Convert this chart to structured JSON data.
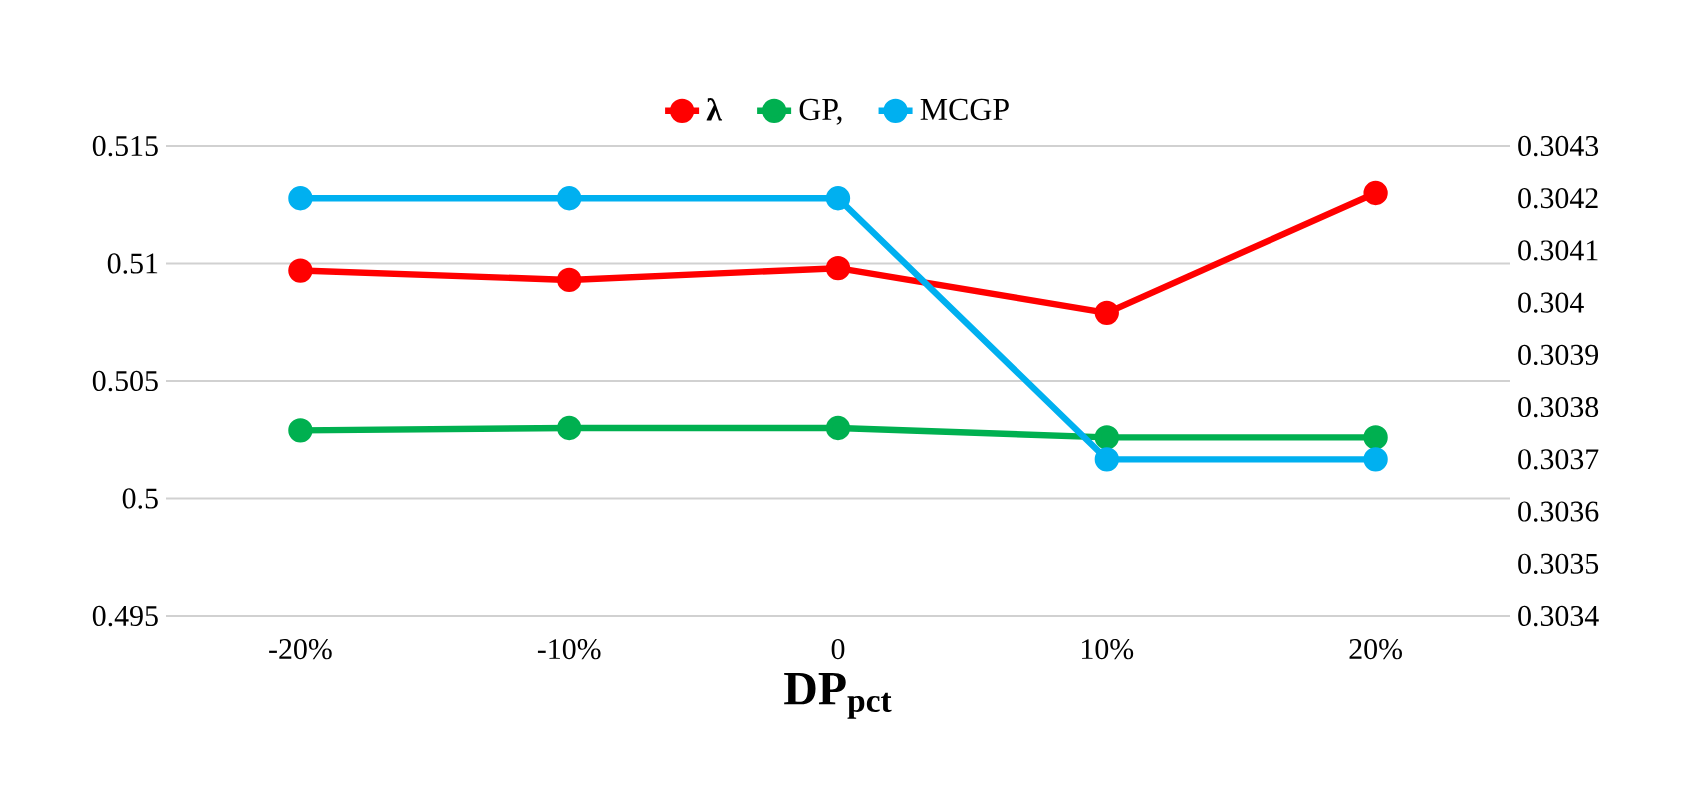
{
  "chart_data": {
    "type": "line",
    "xlabel": "DP$_{pct}$",
    "categories": [
      "-20%",
      "-10%",
      "0",
      "10%",
      "20%"
    ],
    "series": [
      {
        "name": "**λ**",
        "color": "#ff0000",
        "values": [
          0.5097,
          0.5093,
          0.5098,
          0.5079,
          0.513
        ]
      },
      {
        "name": "GP,",
        "color": "#00b050",
        "values": [
          0.5029,
          0.503,
          0.503,
          0.5026,
          0.5026
        ]
      },
      {
        "name": "MCGP",
        "color": "#00b0f0",
        "axis": "y2",
        "values": [
          0.3042,
          0.3042,
          0.3042,
          0.3037,
          0.3037
        ]
      }
    ],
    "ylim": [
      0.495,
      0.515
    ],
    "yticks": [
      0.495,
      0.5,
      0.505,
      0.51,
      0.515
    ],
    "y2lim": [
      0.3034,
      0.3043
    ],
    "y2ticks": [
      0.3034,
      0.3035,
      0.3036,
      0.3037,
      0.3038,
      0.3039,
      0.304,
      0.3041,
      0.3042,
      0.3043
    ],
    "grid": "y",
    "legend": "top",
    "marker": "circle",
    "line_style": "solid"
  }
}
